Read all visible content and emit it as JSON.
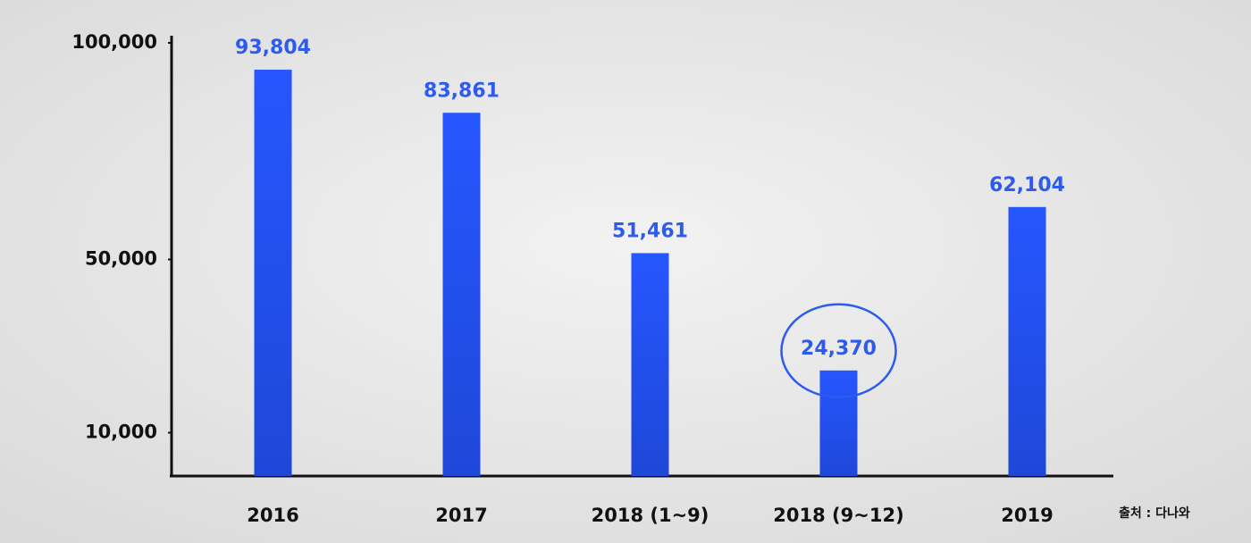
{
  "chart_data": {
    "type": "bar",
    "categories": [
      "2016",
      "2017",
      "2018 (1~9)",
      "2018 (9~12)",
      "2019"
    ],
    "values": [
      93804,
      83861,
      51461,
      24370,
      62104
    ],
    "value_labels": [
      "93,804",
      "83,861",
      "51,461",
      "24,370",
      "62,104"
    ],
    "color": "#2453f2",
    "ylim": [
      0,
      100000
    ],
    "yticks": [
      {
        "value": 10000,
        "label": "10,000"
      },
      {
        "value": 50000,
        "label": "50,000"
      },
      {
        "value": 100000,
        "label": "100,000"
      }
    ],
    "grid": false,
    "annotations": [
      "출처 : 다나와"
    ]
  }
}
